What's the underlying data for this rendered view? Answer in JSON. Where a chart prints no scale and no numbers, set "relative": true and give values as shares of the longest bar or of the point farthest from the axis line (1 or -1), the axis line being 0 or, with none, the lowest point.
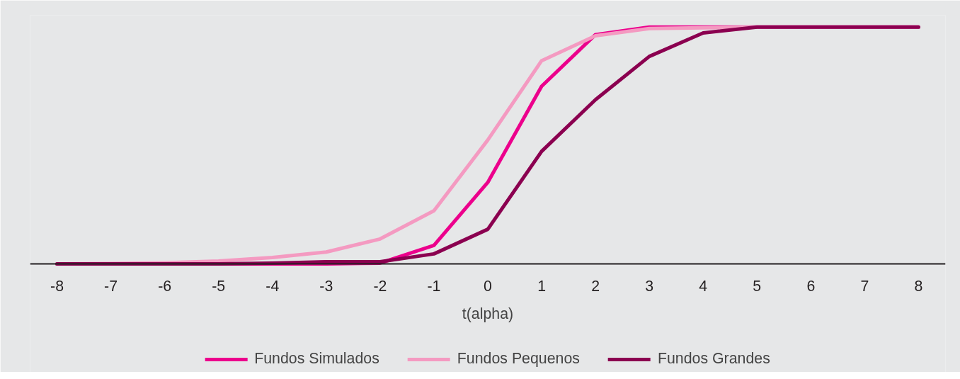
{
  "chart_data": {
    "type": "line",
    "xlabel": "t(alpha)",
    "relative": true,
    "x": [
      -8,
      -7,
      -6,
      -5,
      -4,
      -3,
      -2,
      -1,
      0,
      1,
      2,
      3,
      4,
      5,
      6,
      7,
      8
    ],
    "xlim": [
      -8.5,
      8.5
    ],
    "xticks": [
      -8,
      -7,
      -6,
      -5,
      -4,
      -3,
      -2,
      -1,
      0,
      1,
      2,
      3,
      4,
      5,
      6,
      7,
      8
    ],
    "series": [
      {
        "name": "Fundos Simulados",
        "color": "#ec008c",
        "values": [
          0,
          0,
          0,
          0,
          0,
          0,
          0.003,
          0.078,
          0.344,
          0.75,
          0.968,
          1,
          1,
          1,
          1,
          1,
          1
        ]
      },
      {
        "name": "Fundos Pequenos",
        "color": "#f49ac1",
        "values": [
          0,
          0.001,
          0.004,
          0.012,
          0.027,
          0.05,
          0.105,
          0.224,
          0.523,
          0.858,
          0.963,
          0.994,
          0.997,
          1,
          1,
          1,
          1
        ]
      },
      {
        "name": "Fundos Grandes",
        "color": "#8b0050",
        "values": [
          0,
          0,
          0,
          0,
          0.003,
          0.009,
          0.009,
          0.042,
          0.146,
          0.475,
          0.693,
          0.876,
          0.975,
          1,
          1,
          1,
          1
        ]
      }
    ],
    "grid": false,
    "legend": "bottom",
    "line_style": "solid",
    "marker": "none"
  }
}
